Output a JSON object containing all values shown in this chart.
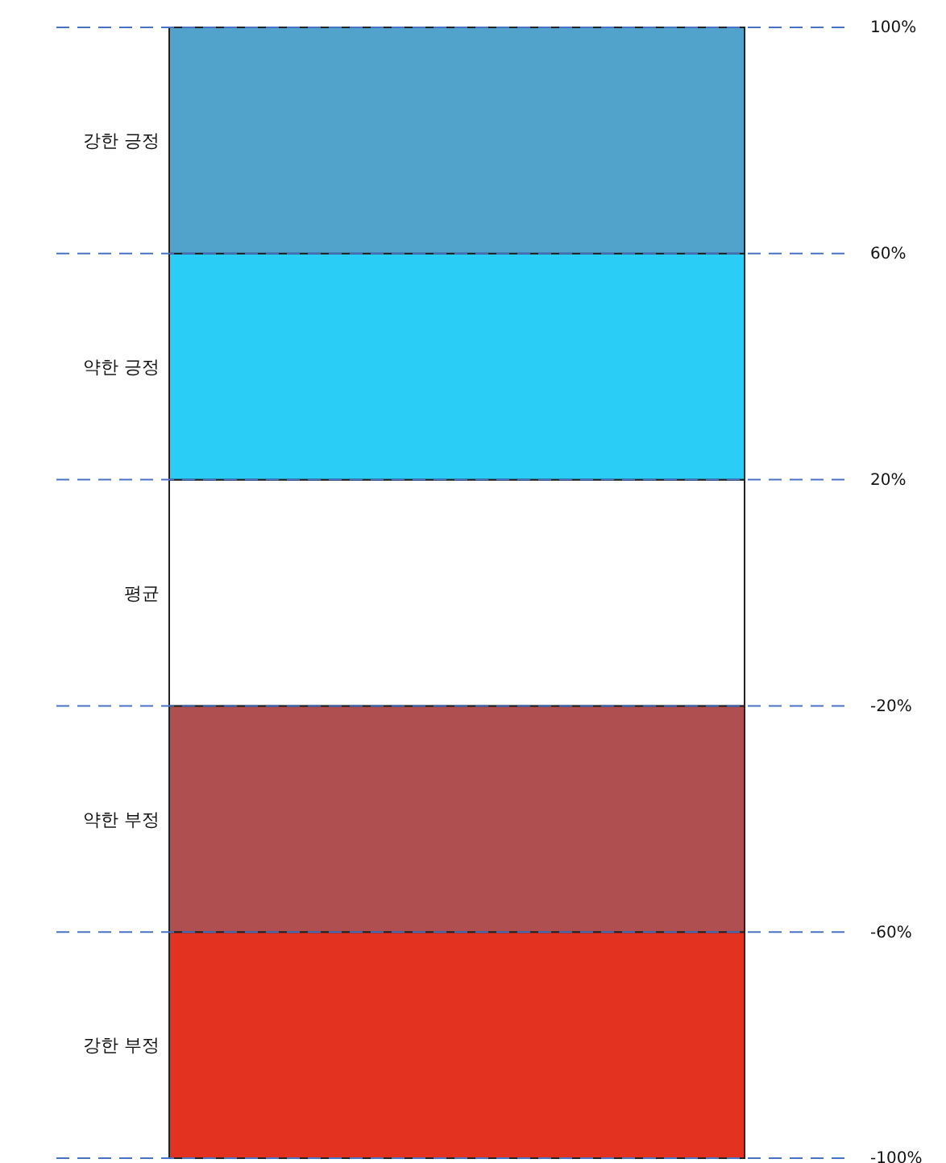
{
  "chart_data": {
    "type": "bar",
    "categories": [
      null
    ],
    "series": [
      {
        "name": "강한 부정",
        "color": "#e3321f",
        "values": [
          40
        ],
        "base": [
          -100
        ]
      },
      {
        "name": "약한 부정",
        "color": "#b04f4f",
        "values": [
          40
        ],
        "base": [
          -60
        ]
      },
      {
        "name": "평균",
        "color": "#ffffff",
        "values": [
          40
        ],
        "base": [
          -20
        ]
      },
      {
        "name": "약한 긍정",
        "color": "#29cdf5",
        "values": [
          40
        ],
        "base": [
          20
        ]
      },
      {
        "name": "강한 긍정",
        "color": "#52a3cc",
        "values": [
          40
        ],
        "base": [
          60
        ]
      }
    ],
    "ylim": [
      -100,
      100
    ],
    "yticks": [
      {
        "value": 100,
        "label": "100%"
      },
      {
        "value": 60,
        "label": "60%"
      },
      {
        "value": 20,
        "label": "20%"
      },
      {
        "value": -20,
        "label": "-20%"
      },
      {
        "value": -60,
        "label": "-60%"
      },
      {
        "value": -100,
        "label": "-100%"
      }
    ],
    "grid": "y",
    "legend": false
  }
}
